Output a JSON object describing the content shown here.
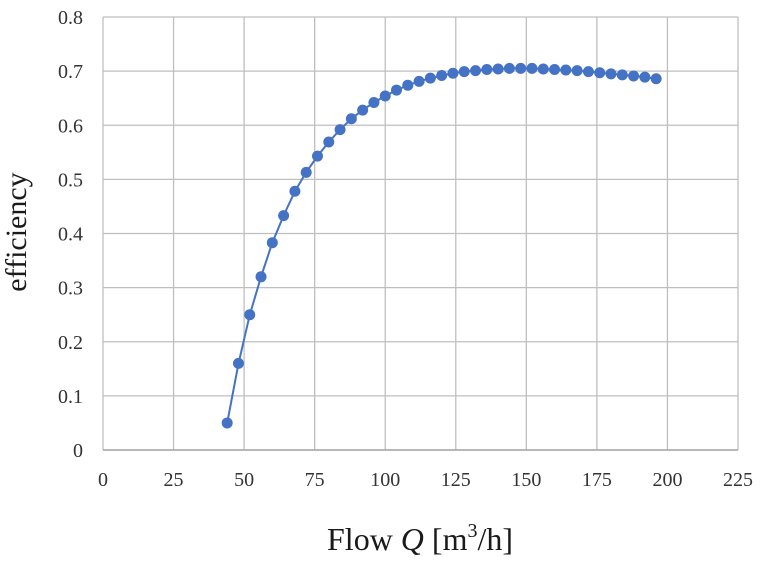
{
  "chart_data": {
    "type": "line",
    "title": "",
    "xlabel": {
      "prefix": "Flow ",
      "var": "Q",
      "unit_open": " [m",
      "unit_sup": "3",
      "unit_close": "/h]"
    },
    "ylabel": "efficiency",
    "xlim": [
      0,
      225
    ],
    "ylim": [
      0,
      0.8
    ],
    "x_ticks": [
      "0",
      "25",
      "50",
      "75",
      "100",
      "125",
      "150",
      "175",
      "200",
      "225"
    ],
    "y_ticks": [
      "0",
      "0.1",
      "0.2",
      "0.3",
      "0.4",
      "0.5",
      "0.6",
      "0.7",
      "0.8"
    ],
    "grid": true,
    "legend": "none",
    "series": [
      {
        "color": "#4472C4",
        "marker": "circle",
        "x": [
          44,
          48,
          52,
          56,
          60,
          64,
          68,
          72,
          76,
          80,
          84,
          88,
          92,
          96,
          100,
          104,
          108,
          112,
          116,
          120,
          124,
          128,
          132,
          136,
          140,
          144,
          148,
          152,
          156,
          160,
          164,
          168,
          172,
          176,
          180,
          184,
          188,
          192,
          196
        ],
        "y": [
          0.05,
          0.16,
          0.25,
          0.32,
          0.383,
          0.433,
          0.478,
          0.513,
          0.543,
          0.569,
          0.592,
          0.612,
          0.628,
          0.642,
          0.654,
          0.665,
          0.674,
          0.681,
          0.687,
          0.692,
          0.696,
          0.699,
          0.701,
          0.703,
          0.704,
          0.705,
          0.705,
          0.705,
          0.704,
          0.703,
          0.702,
          0.701,
          0.699,
          0.697,
          0.695,
          0.693,
          0.691,
          0.689,
          0.686
        ]
      }
    ]
  }
}
